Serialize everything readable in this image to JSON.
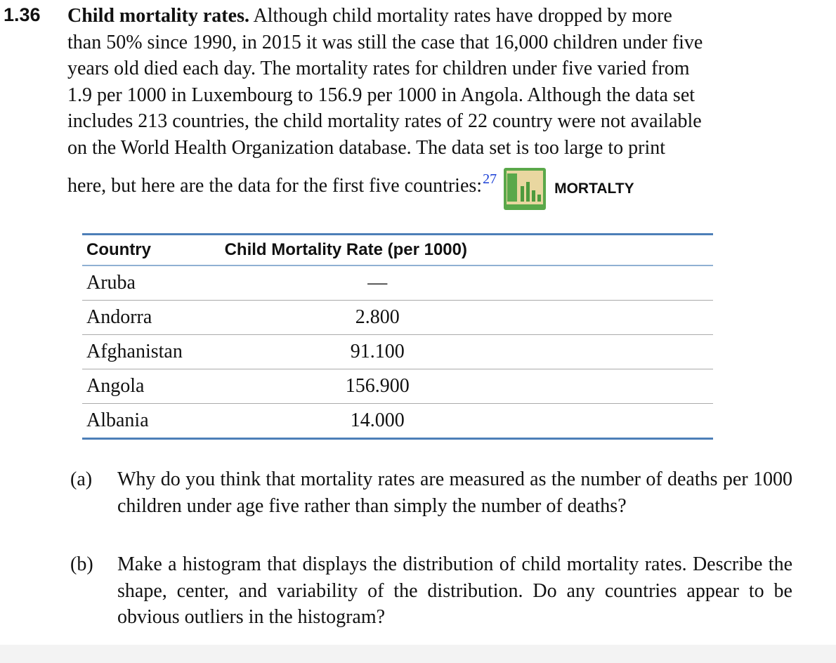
{
  "exercise": {
    "number": "1.36",
    "title": "Child mortality rates.",
    "lines": [
      "Although child mortality rates have dropped by more",
      "than 50% since 1990, in 2015 it was still the case that 16,000 children under five",
      "years old died each day. The mortality rates for children under five varied from",
      "1.9 per 1000 in Luxembourg to 156.9 per 1000 in Angola. Although the data set",
      "includes 213 countries, the child mortality rates of 22 country were not available",
      "on the World Health Organization database. The data set is too large to print",
      "here, but here are the data for the first five countries:"
    ],
    "footnote": "27",
    "dataset": "MORTALTY"
  },
  "table": {
    "headers": [
      "Country",
      "Child Mortality Rate (per 1000)"
    ],
    "rows": [
      [
        "Aruba",
        "—"
      ],
      [
        "Andorra",
        "2.800"
      ],
      [
        "Afghanistan",
        "91.100"
      ],
      [
        "Angola",
        "156.900"
      ],
      [
        "Albania",
        "14.000"
      ]
    ]
  },
  "parts": [
    {
      "label": "(a)",
      "text": "Why do you think that mortality rates are measured as the number of deaths per 1000 children under age five rather than simply the number of deaths?"
    },
    {
      "label": "(b)",
      "text": "Make a histogram that displays the distribution of child mortality rates. Describe the shape, center, and variability of the distribution. Do any countries appear to be obvious outliers in the histogram?"
    }
  ]
}
